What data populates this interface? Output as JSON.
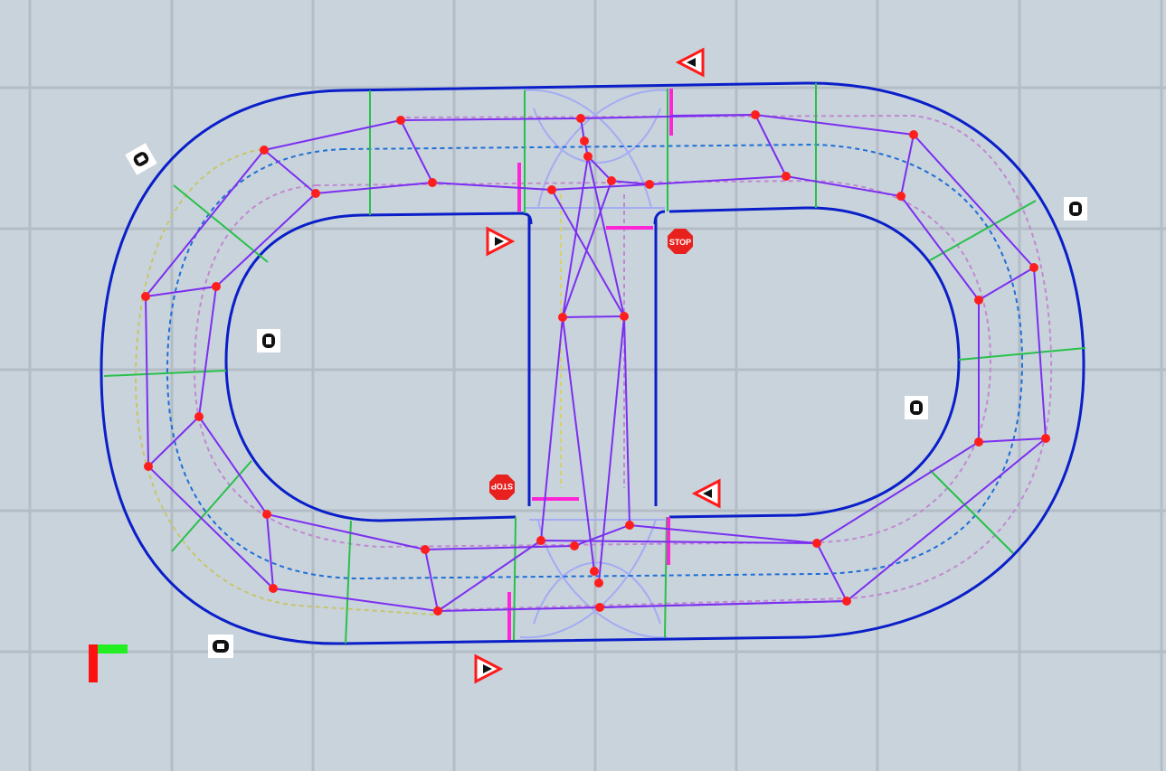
{
  "scene": {
    "background_color": "#c9d3dc",
    "grid_color": "#b4bcc6",
    "road_edge_color": "#0a1fc8",
    "lane_line_color": "#1e6fd6",
    "waypoint_path_color": "#7b2ff0",
    "waypoint_color": "#ff1e1e",
    "section_divider_color": "#28c04a",
    "stop_line_color": "#ff24d6",
    "junction_color": "#9fa7f0"
  },
  "signs": {
    "stop_top_label": "STOP",
    "stop_bottom_label": "STOP"
  },
  "axes_widget": {
    "x_color": "#22ee22",
    "y_color": "#ff1010"
  },
  "icons": [
    "yield-sign-icon",
    "stop-sign-icon",
    "traffic-light-icon",
    "axes-gizmo-icon"
  ]
}
